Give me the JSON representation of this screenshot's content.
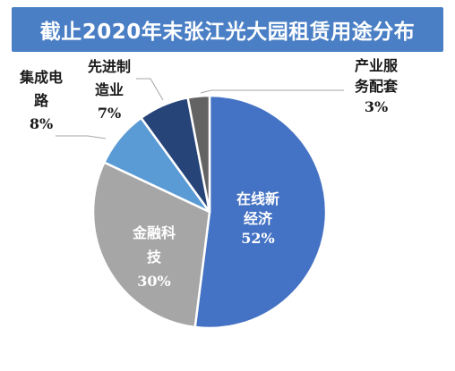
{
  "chart_data": {
    "type": "pie",
    "title": "截止2020年末张江光大园租赁用途分布",
    "slices": [
      {
        "name": "在线新经济",
        "label_lines": [
          "在线新",
          "经济",
          "52%"
        ],
        "value": 52,
        "color": "#4472c4"
      },
      {
        "name": "金融科技",
        "label_lines": [
          "金融科",
          "技",
          "30%"
        ],
        "value": 30,
        "color": "#a6a6a6"
      },
      {
        "name": "集成电路",
        "label_lines": [
          "集成电",
          "路",
          "8%"
        ],
        "value": 8,
        "color": "#5b9bd5"
      },
      {
        "name": "先进制造业",
        "label_lines": [
          "先进制",
          "造业",
          "7%"
        ],
        "value": 7,
        "color": "#264478"
      },
      {
        "name": "产业服务配套",
        "label_lines": [
          "产业服",
          "务配套",
          "3%"
        ],
        "value": 3,
        "color": "#636363"
      }
    ]
  }
}
